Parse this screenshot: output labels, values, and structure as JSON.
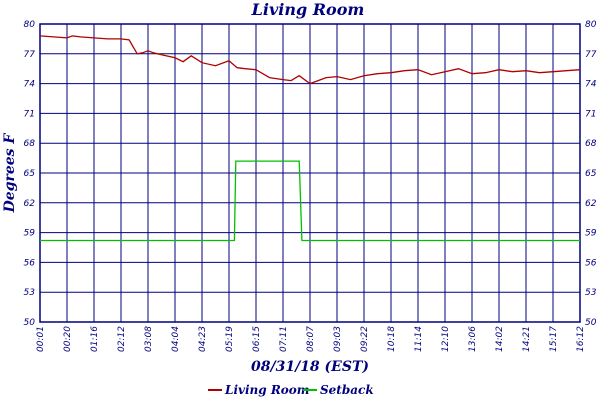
{
  "chart_data": {
    "type": "line",
    "title": "Living Room",
    "xlabel": "08/31/18 (EST)",
    "ylabel": "Degrees F",
    "ylim": [
      50,
      80
    ],
    "yticks": [
      "50",
      "53",
      "56",
      "59",
      "62",
      "65",
      "68",
      "71",
      "74",
      "77",
      "80"
    ],
    "categories": [
      "00:01",
      "00:20",
      "01:16",
      "02:12",
      "03:08",
      "04:04",
      "04:23",
      "05:19",
      "06:15",
      "07:11",
      "08:07",
      "09:03",
      "09:22",
      "10:18",
      "11:14",
      "12:10",
      "13:06",
      "14:02",
      "14:21",
      "15:17",
      "16:12"
    ],
    "grid": true,
    "legend_position": "bottom",
    "series": [
      {
        "name": "Living Room",
        "color": "#b00000",
        "x": [
          0,
          0.5,
          1,
          1.2,
          1.5,
          2,
          2.5,
          3,
          3.3,
          3.6,
          3.8,
          4,
          4.2,
          4.5,
          5,
          5.3,
          5.6,
          6,
          6.5,
          7,
          7.3,
          7.6,
          8,
          8.5,
          9,
          9.3,
          9.6,
          10,
          10.3,
          10.6,
          11,
          11.5,
          12,
          12.5,
          13,
          13.5,
          14,
          14.5,
          15,
          15.5,
          16,
          16.5,
          17,
          17.5,
          18,
          18.5,
          19,
          19.5,
          20
        ],
        "y": [
          78.8,
          78.7,
          78.6,
          78.8,
          78.7,
          78.6,
          78.5,
          78.5,
          78.4,
          77.0,
          77.1,
          77.3,
          77.1,
          76.9,
          76.6,
          76.2,
          76.8,
          76.1,
          75.8,
          76.3,
          75.6,
          75.5,
          75.4,
          74.6,
          74.4,
          74.3,
          74.8,
          74.0,
          74.3,
          74.6,
          74.7,
          74.4,
          74.8,
          75.0,
          75.1,
          75.3,
          75.4,
          74.9,
          75.2,
          75.5,
          75.0,
          75.1,
          75.4,
          75.2,
          75.3,
          75.1,
          75.2,
          75.3,
          75.4
        ]
      },
      {
        "name": "Setback",
        "color": "#00c000",
        "x": [
          0,
          7.2,
          7.25,
          9.6,
          9.7,
          20
        ],
        "y": [
          58.2,
          58.2,
          66.2,
          66.2,
          58.2,
          58.2
        ]
      }
    ]
  }
}
